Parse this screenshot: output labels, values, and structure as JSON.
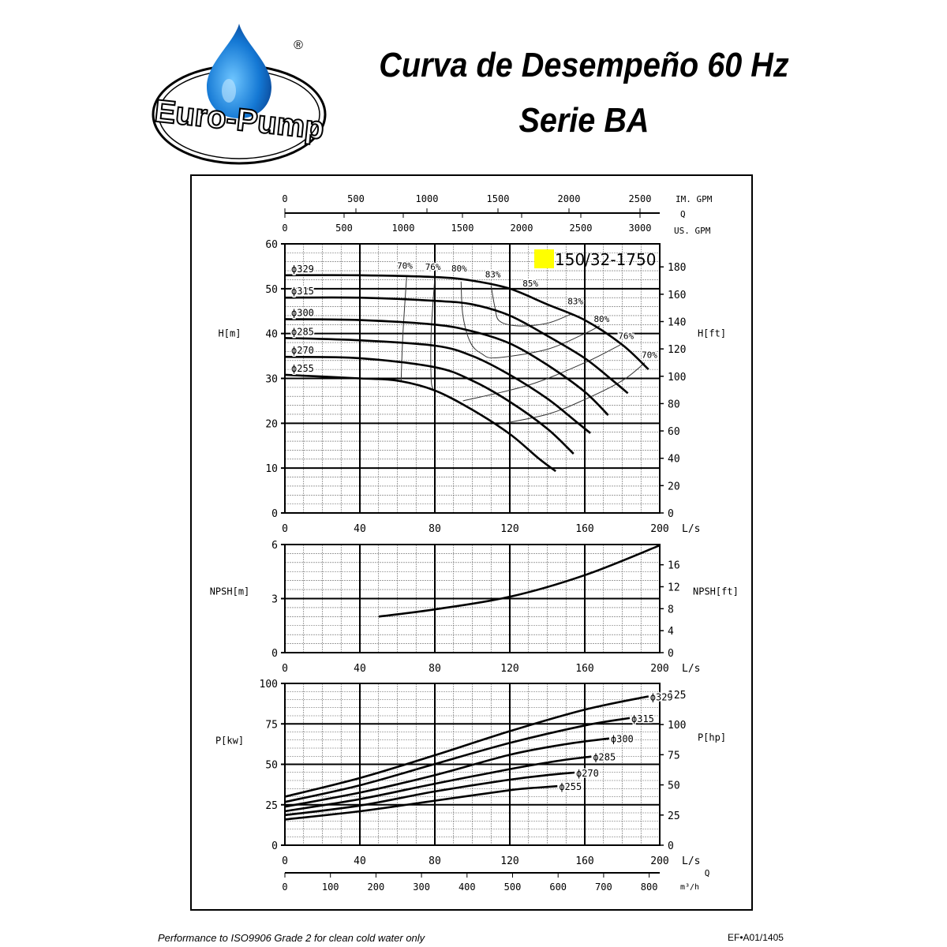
{
  "header": {
    "logo_text": "Euro-Pump",
    "registered_mark": "®",
    "title_line1": "Curva de Desempeño 60 Hz",
    "title_line2": "Serie BA"
  },
  "footer": {
    "note": "Performance to ISO9906 Grade 2 for clean cold water only",
    "code": "EF•A01/1405"
  },
  "colors": {
    "model_marker": "#ffff00",
    "lines": "#000000"
  },
  "chart_data": [
    {
      "type": "line",
      "title": "",
      "model_label": "150/32-1750",
      "xlabel": "L/s",
      "ylabel": "H[m]",
      "ylabel_right": "H[ft]",
      "xlim": [
        0,
        200
      ],
      "ylim": [
        0,
        60
      ],
      "x_ticks": [
        0,
        40,
        80,
        120,
        160,
        200
      ],
      "y_ticks": [
        0,
        10,
        20,
        30,
        40,
        50,
        60
      ],
      "y_ticks_right": [
        0,
        20,
        40,
        60,
        80,
        100,
        120,
        140,
        160,
        180
      ],
      "grid": true,
      "top_axes": {
        "im_gpm_label": "IM. GPM",
        "im_gpm_ticks": [
          0,
          500,
          1000,
          1500,
          2000,
          2500
        ],
        "q_label": "Q",
        "us_gpm_label": "US. GPM",
        "us_gpm_ticks": [
          0,
          500,
          1000,
          1500,
          2000,
          2500,
          3000
        ]
      },
      "series": [
        {
          "name": "ϕ329",
          "points": [
            [
              0,
              53
            ],
            [
              40,
              53
            ],
            [
              80,
              52.6
            ],
            [
              100,
              51.8
            ],
            [
              120,
              50
            ],
            [
              140,
              46.5
            ],
            [
              160,
              43
            ],
            [
              180,
              37.5
            ],
            [
              194,
              32
            ]
          ]
        },
        {
          "name": "ϕ315",
          "points": [
            [
              0,
              48
            ],
            [
              40,
              48
            ],
            [
              80,
              47.3
            ],
            [
              100,
              46.5
            ],
            [
              120,
              44
            ],
            [
              140,
              39.5
            ],
            [
              160,
              34.5
            ],
            [
              175,
              29.5
            ],
            [
              183,
              26.7
            ]
          ]
        },
        {
          "name": "ϕ300",
          "points": [
            [
              0,
              43.2
            ],
            [
              40,
              43
            ],
            [
              80,
              42
            ],
            [
              100,
              40.5
            ],
            [
              120,
              37.8
            ],
            [
              140,
              33
            ],
            [
              160,
              27
            ],
            [
              172.5,
              21.8
            ]
          ]
        },
        {
          "name": "ϕ285",
          "points": [
            [
              0,
              39
            ],
            [
              40,
              38.5
            ],
            [
              80,
              37.3
            ],
            [
              100,
              35
            ],
            [
              120,
              30.8
            ],
            [
              140,
              25.5
            ],
            [
              155,
              20.5
            ],
            [
              163,
              17.8
            ]
          ]
        },
        {
          "name": "ϕ270",
          "points": [
            [
              0,
              34.8
            ],
            [
              40,
              34.5
            ],
            [
              80,
              32.5
            ],
            [
              100,
              29.5
            ],
            [
              120,
              24.8
            ],
            [
              140,
              18.8
            ],
            [
              154,
              13.2
            ]
          ]
        },
        {
          "name": "ϕ255",
          "points": [
            [
              0,
              30.8
            ],
            [
              40,
              30
            ],
            [
              60,
              29.5
            ],
            [
              80,
              27.3
            ],
            [
              100,
              23
            ],
            [
              120,
              17.6
            ],
            [
              135,
              12.3
            ],
            [
              144.5,
              9.3
            ]
          ]
        }
      ],
      "efficiency_lines": [
        {
          "label": "70%",
          "points": [
            [
              65,
              53
            ],
            [
              63,
              40
            ],
            [
              62,
              29.5
            ]
          ]
        },
        {
          "label": "70%",
          "points": [
            [
              113,
              19.7
            ],
            [
              140,
              22
            ],
            [
              160,
              25.3
            ],
            [
              180,
              29.5
            ],
            [
              192,
              33.5
            ]
          ]
        },
        {
          "label": "76%",
          "points": [
            [
              80,
              52.5
            ],
            [
              78,
              40
            ],
            [
              78,
              30
            ],
            [
              79,
              27.6
            ]
          ]
        },
        {
          "label": "76%",
          "points": [
            [
              95,
              25
            ],
            [
              130,
              28.5
            ],
            [
              160,
              33.5
            ],
            [
              179,
              37.5
            ]
          ]
        },
        {
          "label": "80%",
          "points": [
            [
              94,
              51.6
            ],
            [
              95,
              44
            ],
            [
              99,
              38
            ],
            [
              105,
              35.5
            ],
            [
              113,
              34.6
            ],
            [
              140,
              36.5
            ],
            [
              160,
              40
            ],
            [
              168,
              41.7
            ]
          ]
        },
        {
          "label": "83%",
          "points": [
            [
              110,
              50.7
            ],
            [
              112,
              46
            ],
            [
              114.5,
              42.8
            ],
            [
              124.6,
              41.7
            ],
            [
              140,
              42.3
            ],
            [
              152.5,
              44.3
            ]
          ]
        }
      ],
      "efficiency_labels": [
        {
          "text": "70%",
          "at": [
            64,
            54.5
          ]
        },
        {
          "text": "76%",
          "at": [
            79,
            54.2
          ]
        },
        {
          "text": "80%",
          "at": [
            93,
            53.8
          ]
        },
        {
          "text": "83%",
          "at": [
            111,
            52.5
          ]
        },
        {
          "text": "85%",
          "at": [
            131,
            50.5
          ]
        },
        {
          "text": "83%",
          "at": [
            155,
            46.5
          ]
        },
        {
          "text": "80%",
          "at": [
            169,
            42.6
          ]
        },
        {
          "text": "76%",
          "at": [
            182,
            38.8
          ]
        },
        {
          "text": "70%",
          "at": [
            194.5,
            34.6
          ]
        }
      ]
    },
    {
      "type": "line",
      "xlabel": "L/s",
      "ylabel": "NPSH[m]",
      "ylabel_right": "NPSH[ft]",
      "xlim": [
        0,
        200
      ],
      "ylim": [
        0,
        6
      ],
      "x_ticks": [
        0,
        40,
        80,
        120,
        160,
        200
      ],
      "y_ticks": [
        0,
        3,
        6
      ],
      "y_ticks_right": [
        0,
        4,
        8,
        12,
        16
      ],
      "grid": true,
      "series": [
        {
          "points": [
            [
              50,
              2.0
            ],
            [
              80,
              2.4
            ],
            [
              120,
              3.1
            ],
            [
              160,
              4.3
            ],
            [
              200,
              5.95
            ]
          ]
        }
      ]
    },
    {
      "type": "line",
      "xlabel": "L/s",
      "ylabel": "P[kw]",
      "ylabel_right": "P[hp]",
      "xlim": [
        0,
        200
      ],
      "ylim": [
        0,
        100
      ],
      "x_ticks": [
        0,
        40,
        80,
        120,
        160,
        200
      ],
      "y_ticks": [
        0,
        25,
        50,
        75,
        100
      ],
      "y_ticks_right": [
        0,
        25,
        50,
        75,
        100,
        125
      ],
      "grid": true,
      "bottom_axis": {
        "q_label": "Q",
        "unit_label": "m³/h",
        "ticks": [
          0,
          100,
          200,
          300,
          400,
          500,
          600,
          700,
          800
        ]
      },
      "series": [
        {
          "name": "ϕ329",
          "points": [
            [
              0,
              30
            ],
            [
              40,
              41.5
            ],
            [
              80,
              55.6
            ],
            [
              120,
              70.5
            ],
            [
              160,
              83.8
            ],
            [
              194,
              92
            ]
          ]
        },
        {
          "name": "ϕ315",
          "points": [
            [
              0,
              26.7
            ],
            [
              40,
              37
            ],
            [
              80,
              50.2
            ],
            [
              120,
              63.2
            ],
            [
              160,
              74
            ],
            [
              184,
              78.6
            ]
          ]
        },
        {
          "name": "ϕ300",
          "points": [
            [
              0,
              23.8
            ],
            [
              40,
              32.5
            ],
            [
              80,
              43.3
            ],
            [
              120,
              55.9
            ],
            [
              150,
              62.5
            ],
            [
              173,
              66
            ]
          ]
        },
        {
          "name": "ϕ285",
          "points": [
            [
              0,
              21
            ],
            [
              40,
              28.5
            ],
            [
              80,
              38
            ],
            [
              120,
              47
            ],
            [
              145,
              52
            ],
            [
              163.5,
              54.8
            ]
          ]
        },
        {
          "name": "ϕ270",
          "points": [
            [
              0,
              18.6
            ],
            [
              40,
              24.5
            ],
            [
              80,
              33.2
            ],
            [
              120,
              40.5
            ],
            [
              140,
              43.3
            ],
            [
              154.5,
              44.9
            ]
          ]
        },
        {
          "name": "ϕ255",
          "points": [
            [
              0,
              15.9
            ],
            [
              40,
              21
            ],
            [
              80,
              27.5
            ],
            [
              120,
              34
            ],
            [
              135,
              35.6
            ],
            [
              145.4,
              36.5
            ]
          ]
        }
      ]
    }
  ]
}
